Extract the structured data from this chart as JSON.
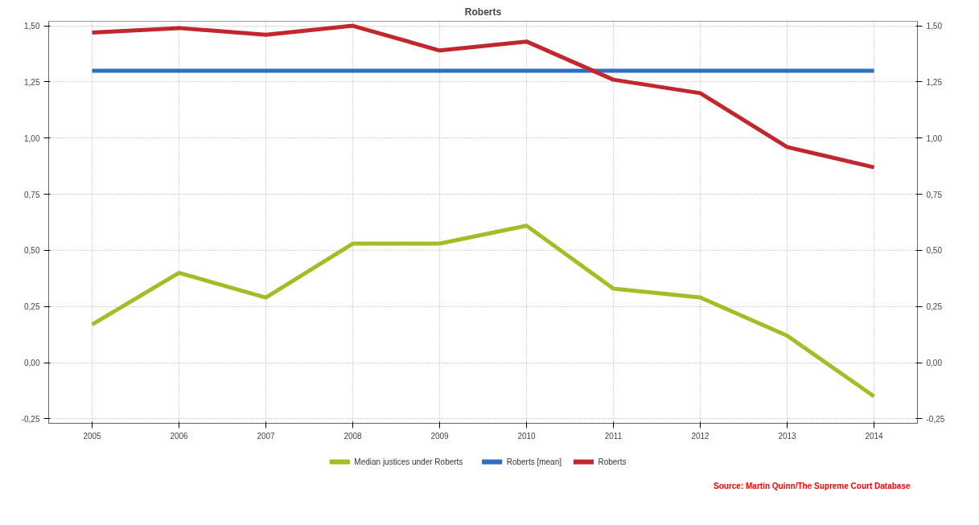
{
  "chart_data": {
    "type": "line",
    "title": "Roberts",
    "categories": [
      "2005",
      "2006",
      "2007",
      "2008",
      "2009",
      "2010",
      "2011",
      "2012",
      "2013",
      "2014"
    ],
    "series": [
      {
        "name": "Median justices under Roberts",
        "color": "#a3bd25",
        "values": [
          0.17,
          0.4,
          0.29,
          0.53,
          0.53,
          0.61,
          0.33,
          0.29,
          0.12,
          -0.15
        ]
      },
      {
        "name": "Roberts [mean]",
        "color": "#2f6fc1",
        "values": [
          1.3,
          1.3,
          1.3,
          1.3,
          1.3,
          1.3,
          1.3,
          1.3,
          1.3,
          1.3
        ]
      },
      {
        "name": "Roberts",
        "color": "#c3272e",
        "values": [
          1.47,
          1.49,
          1.46,
          1.5,
          1.39,
          1.43,
          1.26,
          1.2,
          0.96,
          0.87
        ]
      }
    ],
    "ylim": [
      -0.27,
      1.52
    ],
    "yticks": [
      {
        "value": -0.25,
        "label": "-0,25"
      },
      {
        "value": 0,
        "label": "0,00"
      },
      {
        "value": 0.25,
        "label": "0,25"
      },
      {
        "value": 0.5,
        "label": "0,50"
      },
      {
        "value": 0.75,
        "label": "0,75"
      },
      {
        "value": 1,
        "label": "1,00"
      },
      {
        "value": 1.25,
        "label": "1,25"
      },
      {
        "value": 1.5,
        "label": "1,50"
      }
    ],
    "y2lim": [
      -0.27,
      1.52
    ],
    "y2ticks": [
      {
        "value": -0.25,
        "label": "-0,25"
      },
      {
        "value": 0,
        "label": "0,00"
      },
      {
        "value": 0.25,
        "label": "0,25"
      },
      {
        "value": 0.5,
        "label": "0,50"
      },
      {
        "value": 0.75,
        "label": "0,75"
      },
      {
        "value": 1,
        "label": "1,00"
      },
      {
        "value": 1.25,
        "label": "1,25"
      },
      {
        "value": 1.5,
        "label": "1,50"
      }
    ],
    "grid": true,
    "legend": "bottom",
    "marker": "none",
    "line_style": "solid",
    "annotations": [
      "Source: Martin Quinn/The Supreme Court Database"
    ]
  }
}
